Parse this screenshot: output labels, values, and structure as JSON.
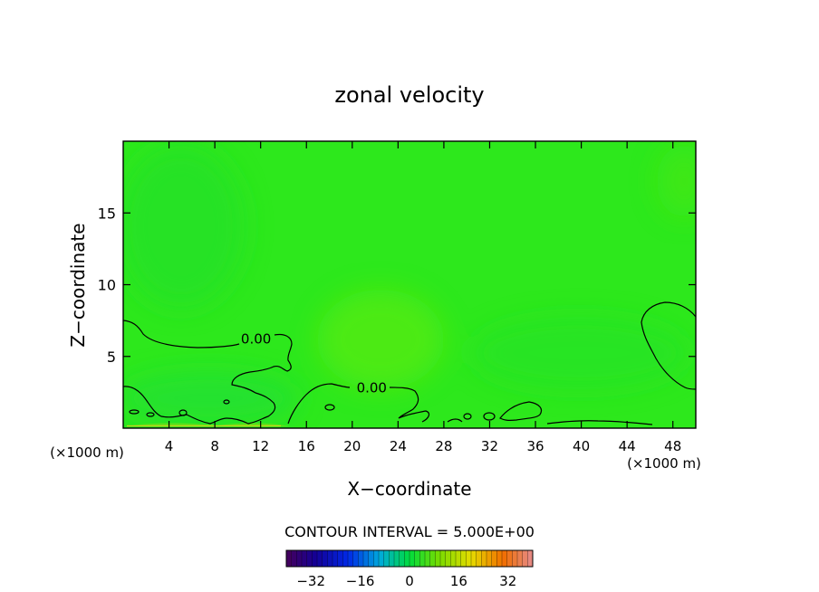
{
  "chart_data": {
    "type": "heatmap",
    "title": "zonal velocity",
    "xlabel": "X−coordinate",
    "ylabel": "Z−coordinate",
    "x_unit_left": "(×1000 m)",
    "x_unit_right": "(×1000 m)",
    "xlim": [
      0,
      50
    ],
    "ylim": [
      0,
      20
    ],
    "x_ticks": [
      4,
      8,
      12,
      16,
      20,
      24,
      28,
      32,
      36,
      40,
      44,
      48
    ],
    "y_ticks": [
      5,
      10,
      15
    ],
    "field_value_range": [
      -2,
      3
    ],
    "contour_labels": [
      {
        "text": "0.00",
        "x": 11.6,
        "z": 6.2
      },
      {
        "text": "0.00",
        "x": 21.7,
        "z": 2.8
      }
    ],
    "colorbar": {
      "caption": "CONTOUR INTERVAL = 5.000E+00",
      "range": [
        -40,
        40
      ],
      "ticks": [
        -32,
        -16,
        0,
        16,
        32
      ],
      "tick_labels": [
        "−32",
        "−16",
        "0",
        "16",
        "32"
      ]
    },
    "colors": {
      "field_base": "#2de81c",
      "contour_line": "#000000"
    }
  }
}
